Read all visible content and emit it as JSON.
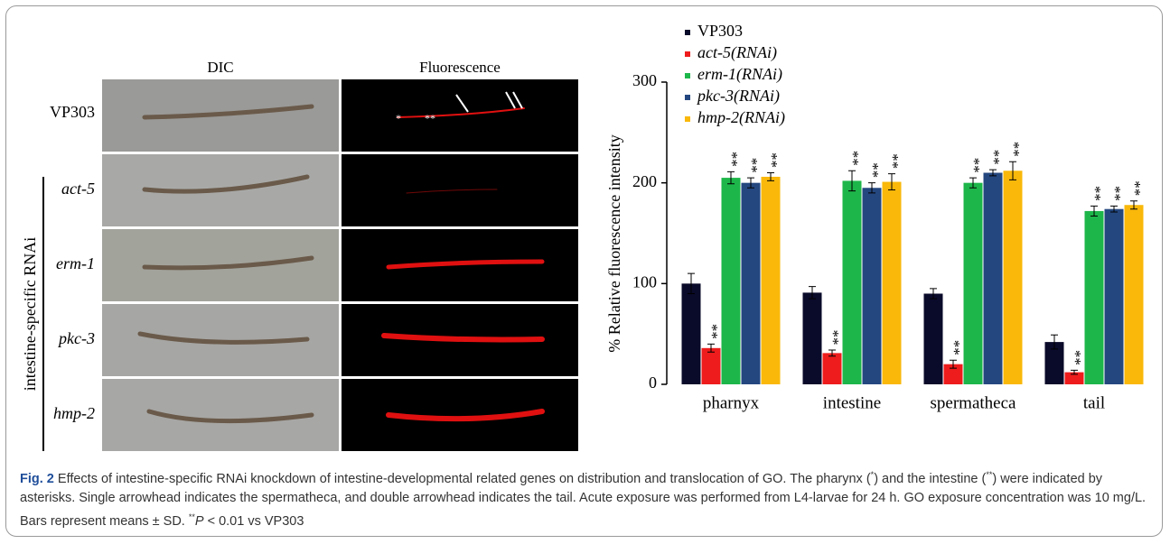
{
  "panels": {
    "columns": [
      "DIC",
      "Fluorescence"
    ],
    "rows": [
      "VP303",
      "act-5",
      "erm-1",
      "pkc-3",
      "hmp-2"
    ],
    "group_label": "intestine-specific RNAi",
    "annotations": [
      "*",
      "**"
    ]
  },
  "chart_data": {
    "type": "bar",
    "ylabel": "% Relative fluorescence intensity",
    "categories": [
      "pharnyx",
      "intestine",
      "spermatheca",
      "tail"
    ],
    "ylim": [
      0,
      300
    ],
    "yticks": [
      0,
      100,
      200,
      300
    ],
    "significance_label": "**",
    "series": [
      {
        "name": "VP303",
        "color": "#0a0a2a",
        "values": [
          100,
          91,
          90,
          42
        ],
        "errors": [
          10,
          6,
          5,
          7
        ]
      },
      {
        "name": "act-5(RNAi)",
        "color": "#ee1c1c",
        "values": [
          36,
          31,
          20,
          12
        ],
        "errors": [
          4,
          3,
          4,
          2
        ]
      },
      {
        "name": "erm-1(RNAi)",
        "color": "#1db64a",
        "values": [
          205,
          202,
          200,
          172
        ],
        "errors": [
          6,
          10,
          5,
          5
        ]
      },
      {
        "name": "pkc-3(RNAi)",
        "color": "#24477f",
        "values": [
          200,
          195,
          210,
          174
        ],
        "errors": [
          5,
          5,
          3,
          3
        ]
      },
      {
        "name": "hmp-2(RNAi)",
        "color": "#f9b80a",
        "values": [
          206,
          201,
          212,
          178
        ],
        "errors": [
          4,
          8,
          9,
          4
        ]
      }
    ]
  },
  "caption": {
    "label": "Fig. 2",
    "parts": [
      " Effects of intestine-specific RNAi knockdown of intestine-developmental related genes on distribution and translocation of GO. The pharynx (",
      "*",
      ") and the intestine (",
      "**",
      ") were indicated by asterisks. Single arrowhead indicates the spermatheca, and double arrowhead indicates the tail. Acute exposure was performed from L4-larvae for 24 h. GO exposure concentration was 10 mg/L. Bars represent means ± SD. ",
      "**",
      "P",
      " < 0.01 vs VP303"
    ]
  }
}
